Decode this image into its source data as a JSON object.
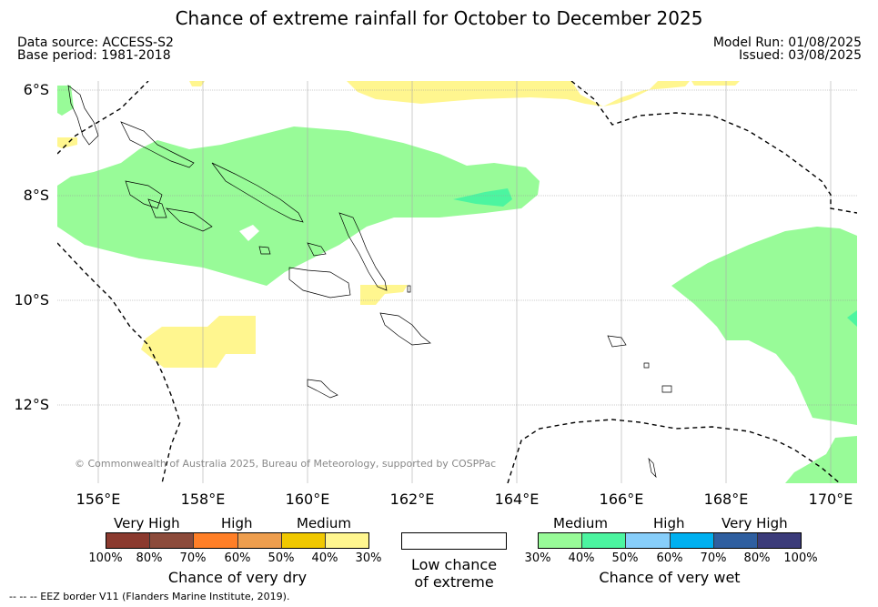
{
  "title": "Chance of extreme rainfall for October to December 2025",
  "data_source": "Data source: ACCESS-S2",
  "base_period": "Base period: 1981-2018",
  "model_run": "Model Run: 01/08/2025",
  "issued": "Issued: 03/08/2025",
  "lat_labels": [
    "6°S",
    "8°S",
    "10°S",
    "12°S"
  ],
  "lon_labels": [
    "156°E",
    "158°E",
    "160°E",
    "162°E",
    "164°E",
    "166°E",
    "168°E",
    "170°E"
  ],
  "copyright": "© Commonwealth of Australia 2025, Bureau of Meteorology, supported by COSPPac",
  "dry_legend": {
    "categories": [
      "Very High",
      "High",
      "Medium"
    ],
    "ticks": [
      "100%",
      "80%",
      "70%",
      "60%",
      "50%",
      "40%",
      "30%"
    ],
    "colors": [
      "#8b3a2f",
      "#8c4b3b",
      "#ff7f27",
      "#ee9e4e",
      "#f0c800",
      "#fff68f"
    ],
    "title": "Chance of very dry"
  },
  "low_legend": {
    "line1": "Low chance",
    "line2": "of extreme"
  },
  "wet_legend": {
    "categories": [
      "Medium",
      "High",
      "Very High"
    ],
    "ticks": [
      "30%",
      "40%",
      "50%",
      "60%",
      "70%",
      "80%",
      "100%"
    ],
    "colors": [
      "#98fb98",
      "#4cf5a0",
      "#87cefa",
      "#00b0f0",
      "#2f5fa0",
      "#3b3b7a"
    ],
    "title": "Chance of very wet"
  },
  "footer": "-- -- -- EEZ border V11 (Flanders Marine Institute, 2019).",
  "colors": {
    "medium_wet": "#98fb98",
    "high_wet": "#4cf5a0",
    "medium_dry": "#fff68f"
  }
}
